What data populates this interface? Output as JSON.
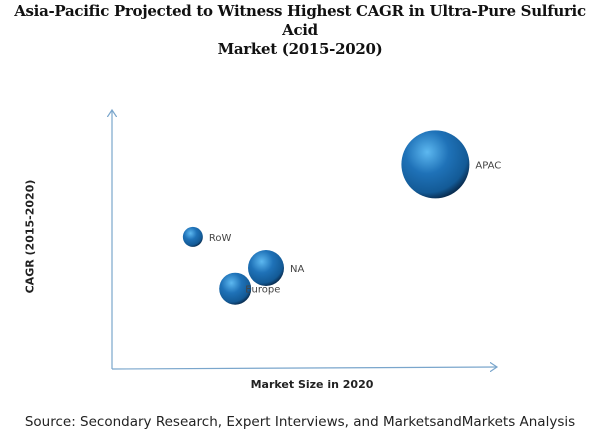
{
  "chart_data": {
    "type": "scatter",
    "subtype": "bubble",
    "title": "Asia-Pacific Projected to Witness Highest CAGR in Ultra-Pure Sulfuric Acid Market (2015-2020)",
    "title_lines": [
      "Asia-Pacific Projected to Witness Highest CAGR in Ultra-Pure Sulfuric Acid",
      "Market (2015-2020)"
    ],
    "xlabel": "Market Size in 2020",
    "ylabel": "CAGR (2015-2020)",
    "xlim": [
      0,
      100
    ],
    "ylim": [
      0,
      100
    ],
    "grid": false,
    "legend": "none",
    "note": "relative scale; no tick values shown",
    "points": [
      {
        "label": "RoW",
        "x": 21,
        "y": 51,
        "size": 10
      },
      {
        "label": "NA",
        "x": 40,
        "y": 39,
        "size": 18
      },
      {
        "label": "Europe",
        "x": 32,
        "y": 31,
        "size": 16
      },
      {
        "label": "APAC",
        "x": 84,
        "y": 79,
        "size": 34
      }
    ],
    "bubble_color": "#1e6fb5",
    "axis_color": "#7aa6cc"
  },
  "source": "Source: Secondary Research, Expert Interviews, and MarketsandMarkets Analysis"
}
